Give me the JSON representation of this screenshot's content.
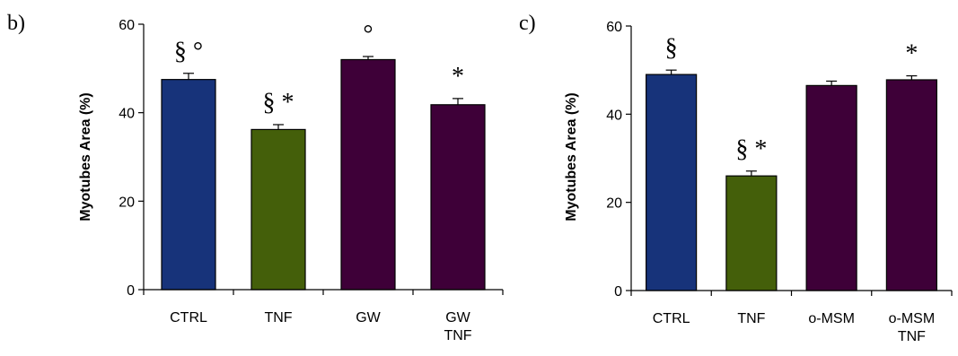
{
  "chart_data": [
    {
      "type": "bar",
      "panel": "b)",
      "categories": [
        [
          "CTRL"
        ],
        [
          "TNF"
        ],
        [
          "GW"
        ],
        [
          "GW",
          "TNF"
        ]
      ],
      "values": [
        47.5,
        36.2,
        52.0,
        41.8
      ],
      "errors": [
        1.4,
        1.1,
        0.7,
        1.4
      ],
      "annotations": [
        "§ °",
        "§ *",
        "°",
        "*"
      ],
      "bar_colors": [
        "#17337a",
        "#445f0a",
        "#3e0038",
        "#3e0038"
      ],
      "ylabel": "Myotubes Area (%)",
      "ylim": [
        0,
        60
      ],
      "yticks": [
        0,
        20,
        40,
        60
      ],
      "grid": false
    },
    {
      "type": "bar",
      "panel": "c)",
      "categories": [
        [
          "CTRL"
        ],
        [
          "TNF"
        ],
        [
          "o-MSM"
        ],
        [
          "o-MSM",
          "TNF"
        ]
      ],
      "values": [
        49.0,
        26.0,
        46.5,
        47.8
      ],
      "errors": [
        1.0,
        1.1,
        1.0,
        0.9
      ],
      "annotations": [
        "§",
        "§ *",
        "",
        "*"
      ],
      "bar_colors": [
        "#17337a",
        "#445f0a",
        "#3e0038",
        "#3e0038"
      ],
      "ylabel": "Myotubes Area (%)",
      "ylim": [
        0,
        60
      ],
      "yticks": [
        0,
        20,
        40,
        60
      ],
      "grid": false
    }
  ]
}
